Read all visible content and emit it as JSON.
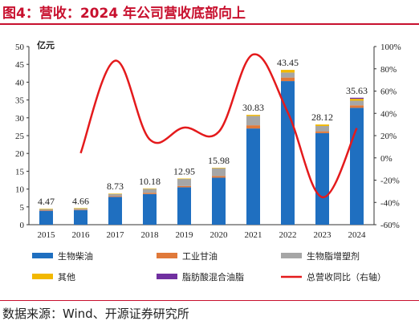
{
  "title": "图4：营收：2024 年公司营收底部向上",
  "source": "数据来源：Wind、开源证券研究所",
  "chart_data": {
    "type": "bar",
    "stacked": true,
    "unit_label": "亿元",
    "categories": [
      "2015",
      "2016",
      "2017",
      "2018",
      "2019",
      "2020",
      "2021",
      "2022",
      "2023",
      "2024"
    ],
    "totals": [
      4.47,
      4.66,
      8.73,
      10.18,
      12.95,
      15.98,
      30.83,
      43.45,
      28.12,
      35.63
    ],
    "total_labels": [
      "4.47",
      "4.66",
      "8.73",
      "10.18",
      "12.95",
      "15.98",
      "30.83",
      "43.45",
      "28.12",
      "35.63"
    ],
    "series": [
      {
        "name": "生物柴油",
        "color": "#1f6fc0",
        "values": [
          3.9,
          4.1,
          7.8,
          8.6,
          10.5,
          13.2,
          27.0,
          40.3,
          25.7,
          32.8
        ]
      },
      {
        "name": "工业甘油",
        "color": "#e0793a",
        "values": [
          0.15,
          0.15,
          0.25,
          0.35,
          0.35,
          0.45,
          0.9,
          1.0,
          0.5,
          0.7
        ]
      },
      {
        "name": "生物脂增塑剂",
        "color": "#a6a6a6",
        "values": [
          0.35,
          0.35,
          0.6,
          1.1,
          2.0,
          2.2,
          2.6,
          1.4,
          1.5,
          1.3
        ]
      },
      {
        "name": "其他",
        "color": "#f2b800",
        "values": [
          0.07,
          0.06,
          0.08,
          0.13,
          0.1,
          0.13,
          0.33,
          0.75,
          0.42,
          0.53
        ]
      },
      {
        "name": "脂肪酸混合油脂",
        "color": "#7030a0",
        "values": [
          0,
          0,
          0,
          0,
          0,
          0,
          0,
          0,
          0,
          0.3
        ]
      }
    ],
    "line": {
      "name": "总营收同比（右轴）",
      "color": "#e41a1c",
      "values": [
        null,
        4.3,
        87.3,
        16.6,
        27.2,
        23.4,
        92.9,
        40.9,
        -35.3,
        26.7
      ]
    },
    "yleft": {
      "min": 0,
      "max": 50,
      "ticks": [
        "0",
        "5",
        "10",
        "15",
        "20",
        "25",
        "30",
        "35",
        "40",
        "45",
        "50"
      ]
    },
    "yright": {
      "min": -60,
      "max": 100,
      "ticks": [
        "-60%",
        "-40%",
        "-20%",
        "0%",
        "20%",
        "40%",
        "60%",
        "80%",
        "100%"
      ]
    },
    "legend_order": [
      "生物柴油",
      "工业甘油",
      "生物脂增塑剂",
      "其他",
      "脂肪酸混合油脂",
      "总营收同比（右轴）"
    ]
  }
}
